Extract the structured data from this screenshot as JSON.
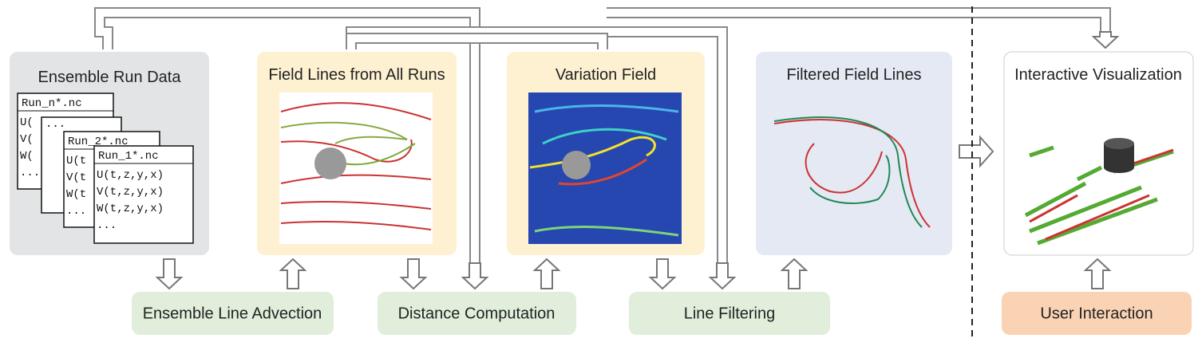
{
  "panels": [
    {
      "title": "Ensemble Run Data"
    },
    {
      "title": "Field Lines from All Runs"
    },
    {
      "title": "Variation Field"
    },
    {
      "title": "Filtered Field Lines"
    },
    {
      "title": "Interactive Visualization"
    }
  ],
  "files": [
    {
      "name": "Run_n*.nc",
      "lines": [
        "U(",
        "V(",
        "W(",
        "..."
      ]
    },
    {
      "name": "...",
      "lines": []
    },
    {
      "name": "Run_2*.nc",
      "lines": [
        "U(t",
        "V(t",
        "W(t",
        "..."
      ]
    },
    {
      "name": "Run_1*.nc",
      "lines": [
        "U(t,z,y,x)",
        "V(t,z,y,x)",
        "W(t,z,y,x)",
        "..."
      ]
    }
  ],
  "processes": [
    {
      "label": "Ensemble Line Advection"
    },
    {
      "label": "Distance Computation"
    },
    {
      "label": "Line Filtering"
    },
    {
      "label": "User Interaction"
    }
  ]
}
